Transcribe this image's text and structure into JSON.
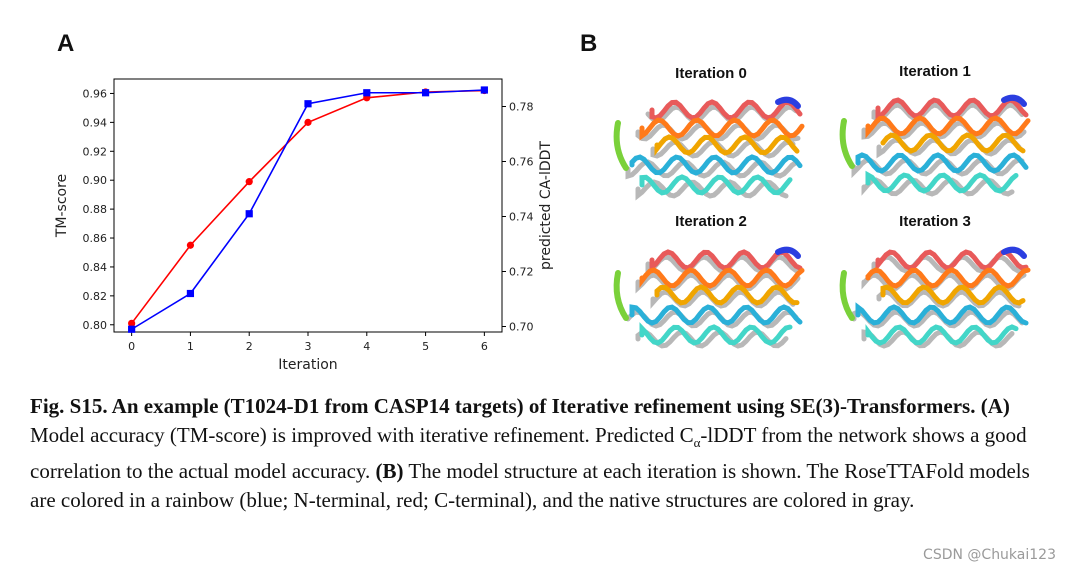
{
  "panel_a_label": "A",
  "panel_b_label": "B",
  "chart_data": {
    "type": "line",
    "xlabel": "Iteration",
    "ylabel_left": "TM-score",
    "ylabel_right": "predicted CA-lDDT",
    "x": [
      0,
      1,
      2,
      3,
      4,
      5,
      6
    ],
    "xlim": [
      -0.3,
      6.3
    ],
    "ylim_left": [
      0.795,
      0.97
    ],
    "ylim_right": [
      0.698,
      0.79
    ],
    "left_ticks": [
      "0.80",
      "0.82",
      "0.84",
      "0.86",
      "0.88",
      "0.90",
      "0.92",
      "0.94",
      "0.96"
    ],
    "right_ticks": [
      "0.70",
      "0.72",
      "0.74",
      "0.76",
      "0.78"
    ],
    "series": [
      {
        "name": "TM-score",
        "axis": "left",
        "color": "#ff0000",
        "marker": "circle",
        "values": [
          0.801,
          0.855,
          0.899,
          0.94,
          0.957,
          0.961,
          0.962
        ]
      },
      {
        "name": "predicted CA-lDDT",
        "axis": "right",
        "color": "#0000ff",
        "marker": "square",
        "values": [
          0.699,
          0.712,
          0.741,
          0.781,
          0.785,
          0.785,
          0.786
        ]
      }
    ],
    "grid": false
  },
  "iterations": [
    {
      "title": "Iteration 0"
    },
    {
      "title": "Iteration 1"
    },
    {
      "title": "Iteration 2"
    },
    {
      "title": "Iteration 3"
    }
  ],
  "caption": {
    "fig_title": "Fig. S15. An example (T1024-D1 from CASP14 targets) of Iterative refinement using SE(3)-Transformers.",
    "label_a": "(A)",
    "text_a_1": "Model accuracy (TM-score) is improved with iterative refinement. Predicted C",
    "text_a_sub": "α",
    "text_a_2": "-lDDT from the network shows a good correlation to the actual model accuracy.",
    "label_b": "(B)",
    "text_b": "The model structure at each iteration is shown. The RoseTTAFold models are colored in a rainbow (blue; N-terminal, red; C-terminal), and the native structures are colored in gray."
  },
  "watermark": "CSDN @Chukai123",
  "colors": {
    "tm_line": "#ff0000",
    "lddt_line": "#0000ff",
    "native_gray": "#b8b8b8"
  }
}
